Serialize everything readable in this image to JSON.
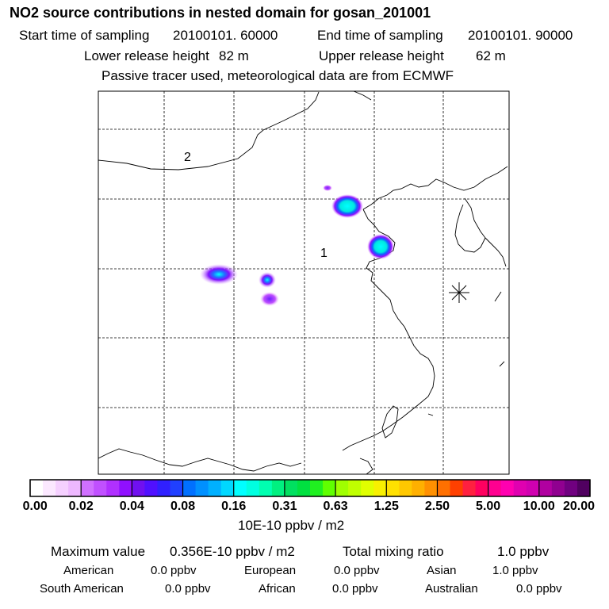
{
  "title": "NO2 source contributions in nested domain for gosan_201001",
  "start_time_label": "Start time of sampling",
  "start_time_value": "20100101. 60000",
  "end_time_label": "End time of sampling",
  "end_time_value": "20100101. 90000",
  "lower_release_label": "Lower release height",
  "lower_release_value": "82 m",
  "upper_release_label": "Upper release height",
  "upper_release_value": "62 m",
  "tracer_note": "Passive tracer used, meteorological data are from ECMWF",
  "map": {
    "region_labels": [
      "2",
      "1"
    ],
    "source_marker": "asterisk-icon"
  },
  "colorbar": {
    "ticks": [
      "0.00",
      "0.02",
      "0.04",
      "0.08",
      "0.16",
      "0.31",
      "0.63",
      "1.25",
      "2.50",
      "5.00",
      "10.00",
      "20.00"
    ],
    "unit": "10E-10 ppbv / m2",
    "colors": [
      "#ffffff",
      "#fbe8ff",
      "#f5d0ff",
      "#eeb8ff",
      "#d070ff",
      "#c050ff",
      "#b030ff",
      "#9010ff",
      "#7010f0",
      "#5010ff",
      "#3020ff",
      "#2040ff",
      "#0070ff",
      "#0090ff",
      "#00b0ff",
      "#00d8ff",
      "#00ffff",
      "#00ffe0",
      "#00ffb0",
      "#00f080",
      "#00e060",
      "#00e040",
      "#20f020",
      "#60ff00",
      "#a0ff00",
      "#c0ff00",
      "#e0ff00",
      "#f8f000",
      "#ffe000",
      "#ffc800",
      "#ffb000",
      "#ff9000",
      "#ff7000",
      "#ff4000",
      "#ff2040",
      "#ff0060",
      "#ff0090",
      "#ff00b0",
      "#e000b0",
      "#d000b0",
      "#b000a0",
      "#900090",
      "#700080",
      "#500060"
    ]
  },
  "summary": {
    "max_label": "Maximum value",
    "max_value": "0.356E-10 ppbv / m2",
    "total_label": "Total mixing ratio",
    "total_value": "1.0 ppbv"
  },
  "regions": [
    {
      "name": "American",
      "value": "0.0 ppbv"
    },
    {
      "name": "European",
      "value": "0.0 ppbv"
    },
    {
      "name": "Asian",
      "value": "1.0 ppbv"
    },
    {
      "name": "South American",
      "value": "0.0 ppbv"
    },
    {
      "name": "African",
      "value": "0.0 ppbv"
    },
    {
      "name": "Australian",
      "value": "0.0 ppbv"
    }
  ]
}
